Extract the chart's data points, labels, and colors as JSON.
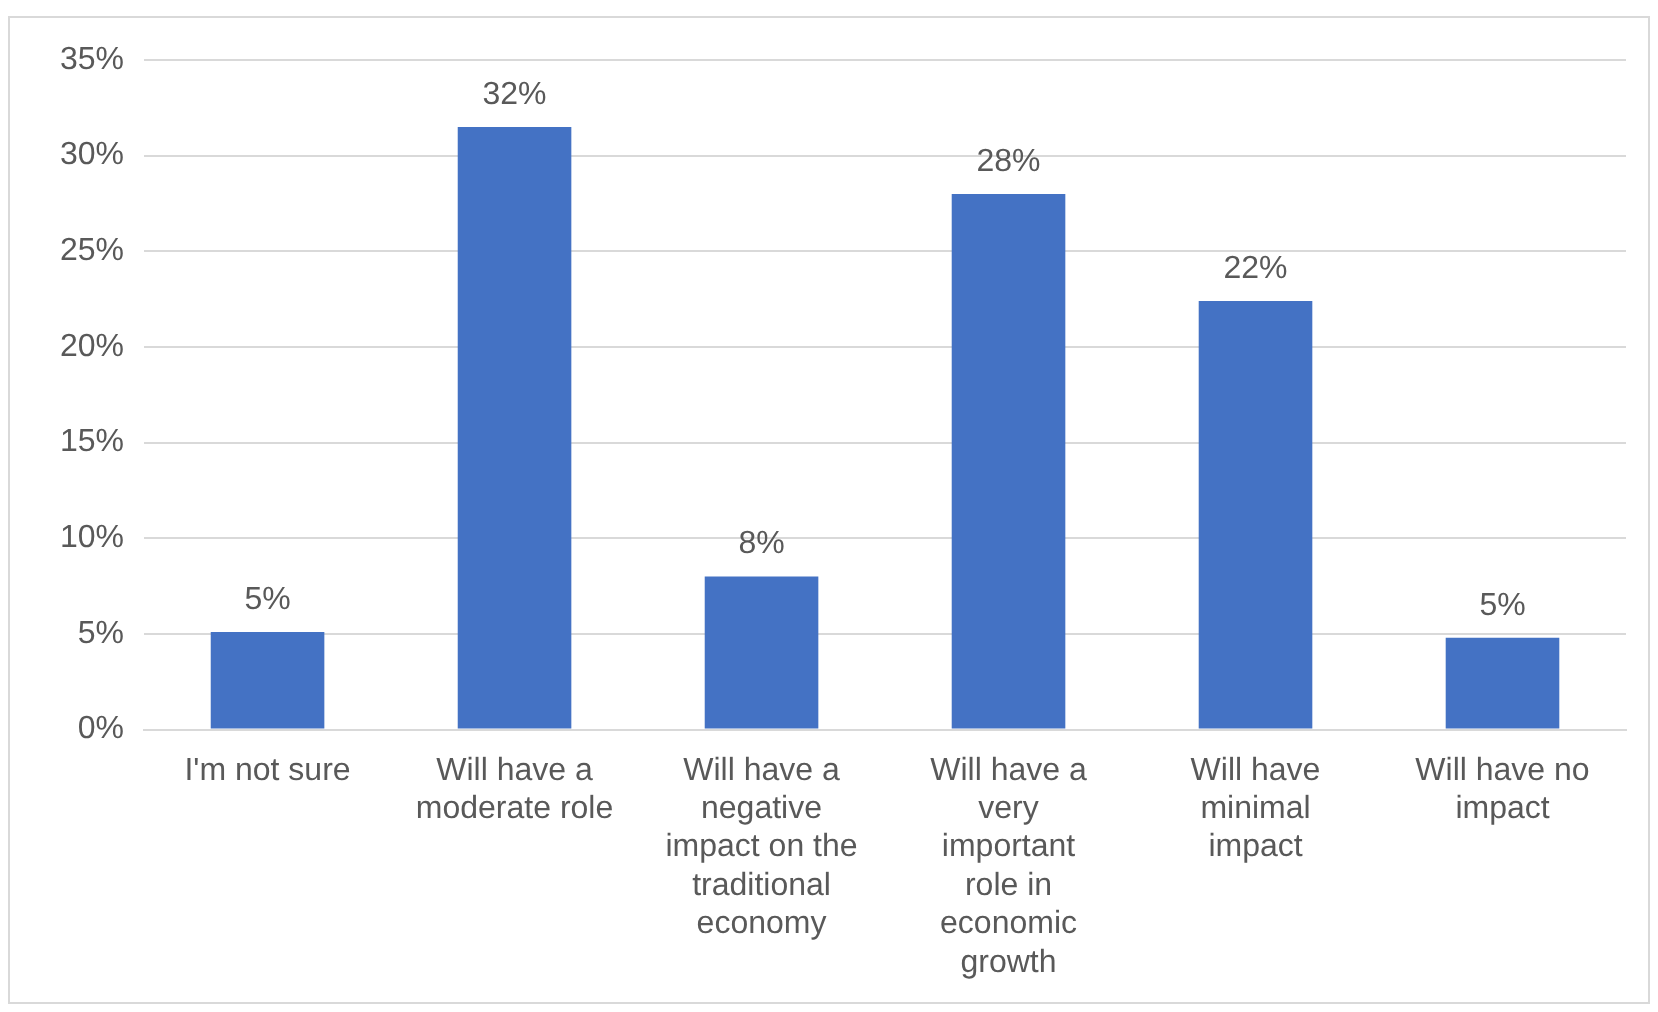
{
  "chart_data": {
    "type": "bar",
    "categories": [
      "I'm not sure",
      "Will have a moderate role",
      "Will have a negative impact on the traditional economy",
      "Will have a very important role in economic growth",
      "Will have minimal impact",
      "Will have no impact"
    ],
    "values": [
      5.1,
      31.5,
      8.0,
      28.0,
      22.4,
      4.8
    ],
    "value_labels": [
      "5%",
      "32%",
      "8%",
      "28%",
      "22%",
      "5%"
    ],
    "color": "#4472c4",
    "ylim": [
      0,
      35
    ],
    "yticks": [
      {
        "value": 0,
        "label": "0%"
      },
      {
        "value": 5,
        "label": "5%"
      },
      {
        "value": 10,
        "label": "10%"
      },
      {
        "value": 15,
        "label": "15%"
      },
      {
        "value": 20,
        "label": "20%"
      },
      {
        "value": 25,
        "label": "25%"
      },
      {
        "value": 30,
        "label": "30%"
      },
      {
        "value": 35,
        "label": "35%"
      }
    ],
    "grid": "y"
  }
}
